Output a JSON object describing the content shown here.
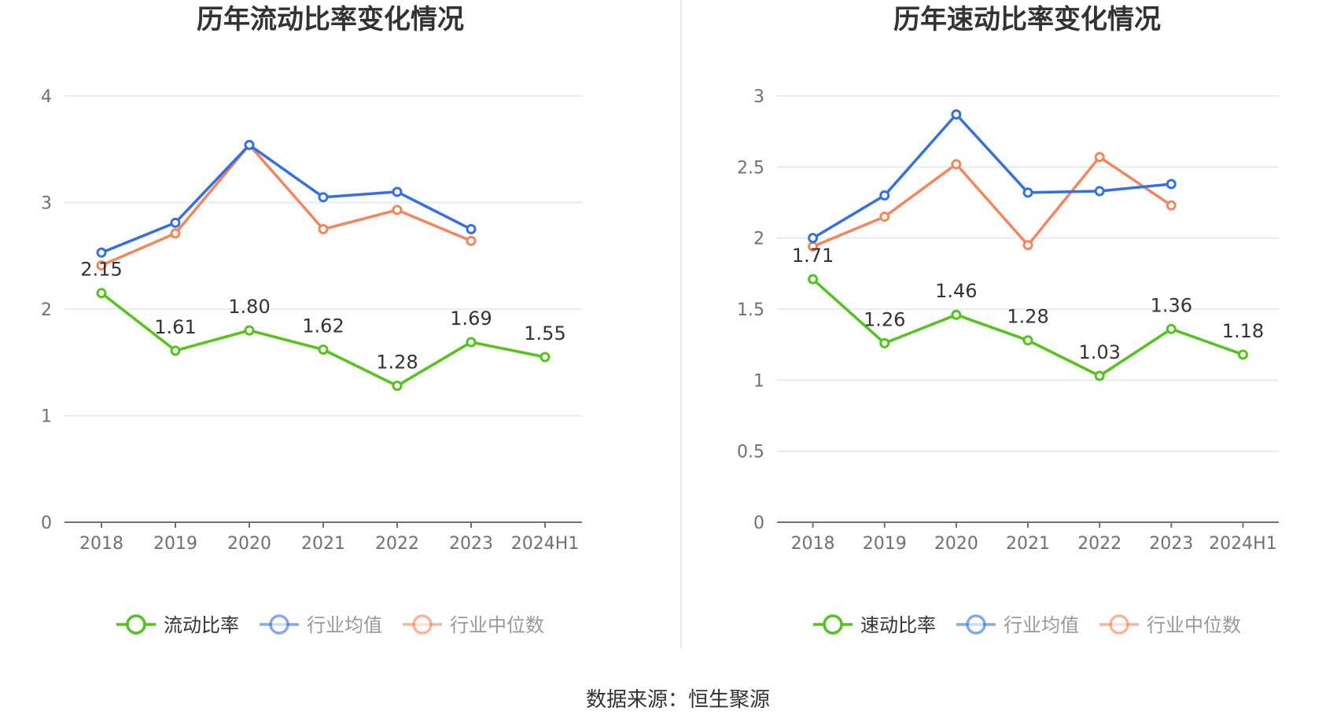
{
  "source_label": "数据来源：恒生聚源",
  "chart_data": [
    {
      "type": "line",
      "title": "历年流动比率变化情况",
      "categories": [
        "2018",
        "2019",
        "2020",
        "2021",
        "2022",
        "2023",
        "2024H1"
      ],
      "ylim": [
        0,
        4
      ],
      "yticks": [
        0,
        1,
        2,
        3,
        4
      ],
      "ytick_labels": [
        "0",
        "1",
        "2",
        "3",
        "4"
      ],
      "grid": true,
      "legend_position": "bottom-center",
      "series": [
        {
          "name": "流动比率",
          "color": "#52c41a",
          "labeled": true,
          "labels": [
            "2.15",
            "1.61",
            "1.80",
            "1.62",
            "1.28",
            "1.69",
            "1.55"
          ],
          "values": [
            2.15,
            1.61,
            1.8,
            1.62,
            1.28,
            1.69,
            1.55
          ]
        },
        {
          "name": "行业均值",
          "color": "#3371e3",
          "labeled": false,
          "values": [
            2.53,
            2.81,
            3.54,
            3.05,
            3.1,
            2.75,
            null
          ]
        },
        {
          "name": "行业中位数",
          "color": "#f5855a",
          "labeled": false,
          "values": [
            2.41,
            2.71,
            3.54,
            2.75,
            2.93,
            2.64,
            null
          ]
        }
      ]
    },
    {
      "type": "line",
      "title": "历年速动比率变化情况",
      "categories": [
        "2018",
        "2019",
        "2020",
        "2021",
        "2022",
        "2023",
        "2024H1"
      ],
      "ylim": [
        0,
        3
      ],
      "yticks": [
        0,
        0.5,
        1,
        1.5,
        2,
        2.5,
        3
      ],
      "ytick_labels": [
        "0",
        "0.5",
        "1",
        "1.5",
        "2",
        "2.5",
        "3"
      ],
      "grid": true,
      "legend_position": "bottom-center",
      "series": [
        {
          "name": "速动比率",
          "color": "#52c41a",
          "labeled": true,
          "labels": [
            "1.71",
            "1.26",
            "1.46",
            "1.28",
            "1.03",
            "1.36",
            "1.18"
          ],
          "values": [
            1.71,
            1.26,
            1.46,
            1.28,
            1.03,
            1.36,
            1.18
          ]
        },
        {
          "name": "行业均值",
          "color": "#3371e3",
          "labeled": false,
          "values": [
            2.0,
            2.3,
            2.87,
            2.32,
            2.33,
            2.38,
            null
          ]
        },
        {
          "name": "行业中位数",
          "color": "#f5855a",
          "labeled": false,
          "values": [
            1.94,
            2.15,
            2.52,
            1.95,
            2.57,
            2.23,
            null
          ]
        }
      ]
    }
  ]
}
